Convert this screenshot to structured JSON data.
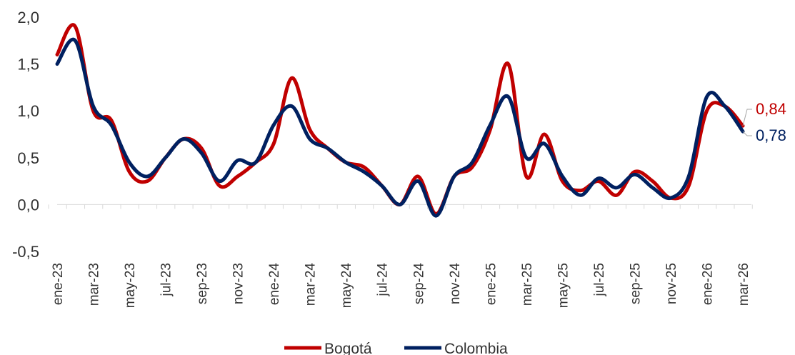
{
  "chart_data": {
    "type": "line",
    "title": "",
    "xlabel": "",
    "ylabel": "",
    "ylim": [
      -0.5,
      2.0
    ],
    "yticks": [
      "2,0",
      "1,5",
      "1,0",
      "0,5",
      "0,0",
      "-0,5"
    ],
    "ytick_values": [
      2.0,
      1.5,
      1.0,
      0.5,
      0.0,
      -0.5
    ],
    "grid": false,
    "legend_position": "bottom",
    "x": [
      "ene-23",
      "feb-23",
      "mar-23",
      "abr-23",
      "may-23",
      "jun-23",
      "jul-23",
      "ago-23",
      "sep-23",
      "oct-23",
      "nov-23",
      "dic-23",
      "ene-24",
      "feb-24",
      "mar-24",
      "abr-24",
      "may-24",
      "jun-24",
      "jul-24",
      "ago-24",
      "sep-24",
      "oct-24",
      "nov-24",
      "dic-24",
      "ene-25",
      "feb-25",
      "mar-25",
      "abr-25",
      "may-25",
      "jun-25",
      "jul-25",
      "ago-25",
      "sep-25",
      "oct-25",
      "nov-25",
      "dic-25",
      "ene-26",
      "feb-26",
      "mar-26"
    ],
    "x_tick_labels": [
      "ene-23",
      "mar-23",
      "may-23",
      "jul-23",
      "sep-23",
      "nov-23",
      "ene-24",
      "mar-24",
      "may-24",
      "jul-24",
      "sep-24",
      "nov-24",
      "ene-25",
      "mar-25",
      "may-25",
      "jul-25",
      "sep-25",
      "nov-25",
      "ene-26",
      "mar-26"
    ],
    "series": [
      {
        "name": "Bogotá",
        "color": "#c00000",
        "end_label": "0,84",
        "values": [
          1.6,
          1.9,
          1.0,
          0.9,
          0.35,
          0.25,
          0.5,
          0.7,
          0.6,
          0.2,
          0.3,
          0.45,
          0.65,
          1.35,
          0.8,
          0.6,
          0.45,
          0.4,
          0.2,
          0.0,
          0.3,
          -0.1,
          0.3,
          0.4,
          0.8,
          1.5,
          0.3,
          0.75,
          0.25,
          0.15,
          0.25,
          0.1,
          0.35,
          0.25,
          0.07,
          0.2,
          1.0,
          1.05,
          0.84
        ]
      },
      {
        "name": "Colombia",
        "color": "#002060",
        "end_label": "0,78",
        "values": [
          1.5,
          1.75,
          1.05,
          0.85,
          0.45,
          0.3,
          0.5,
          0.7,
          0.55,
          0.25,
          0.47,
          0.45,
          0.85,
          1.05,
          0.7,
          0.6,
          0.45,
          0.35,
          0.2,
          0.0,
          0.25,
          -0.12,
          0.3,
          0.45,
          0.85,
          1.15,
          0.5,
          0.65,
          0.3,
          0.1,
          0.28,
          0.18,
          0.32,
          0.18,
          0.07,
          0.3,
          1.15,
          1.05,
          0.78
        ]
      }
    ]
  }
}
